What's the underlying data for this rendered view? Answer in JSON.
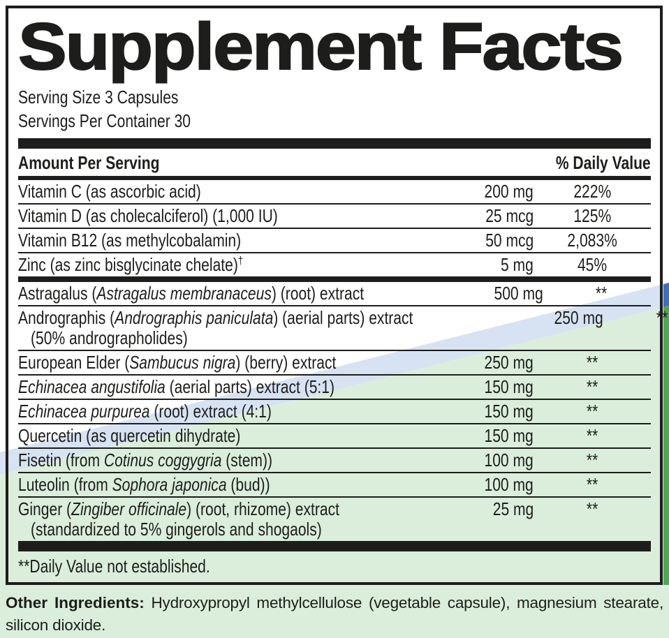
{
  "label": {
    "title": "Supplement Facts",
    "serving_size": "Serving Size 3 Capsules",
    "servings_per_container": "Servings Per Container 30",
    "columns": {
      "left": "Amount Per Serving",
      "right": "% Daily Value"
    },
    "rows": [
      {
        "name": [
          {
            "t": "Vitamin C (as ascorbic acid)"
          }
        ],
        "amount": "200 mg",
        "dv": "222%"
      },
      {
        "name": [
          {
            "t": "Vitamin D (as cholecalciferol) (1,000 IU)"
          }
        ],
        "amount": "25 mcg",
        "dv": "125%"
      },
      {
        "name": [
          {
            "t": "Vitamin B12 (as methylcobalamin)"
          }
        ],
        "amount": "50 mcg",
        "dv": "2,083%"
      },
      {
        "name": [
          {
            "t": "Zinc (as zinc bisglycinate chelate)"
          },
          {
            "t": "†",
            "sup": true
          }
        ],
        "amount": "5 mg",
        "dv": "45%",
        "group_end": true
      },
      {
        "name": [
          {
            "t": "Astragalus ("
          },
          {
            "t": "Astragalus membranaceus",
            "i": true
          },
          {
            "t": ") (root) extract"
          }
        ],
        "amount": "500 mg",
        "dv": "**"
      },
      {
        "name": [
          {
            "t": "Andrographis ("
          },
          {
            "t": "Andrographis paniculata",
            "i": true
          },
          {
            "t": ") (aerial parts) extract"
          }
        ],
        "name2": "(50% andrographolides)",
        "amount": "250 mg",
        "dv": "**"
      },
      {
        "name": [
          {
            "t": "European Elder ("
          },
          {
            "t": "Sambucus nigra",
            "i": true
          },
          {
            "t": ") (berry) extract"
          }
        ],
        "amount": "250 mg",
        "dv": "**"
      },
      {
        "name": [
          {
            "t": "Echinacea angustifolia",
            "i": true
          },
          {
            "t": " (aerial parts) extract (5:1)"
          }
        ],
        "amount": "150 mg",
        "dv": "**"
      },
      {
        "name": [
          {
            "t": "Echinacea purpurea",
            "i": true
          },
          {
            "t": " (root) extract (4:1)"
          }
        ],
        "amount": "150 mg",
        "dv": "**"
      },
      {
        "name": [
          {
            "t": "Quercetin (as quercetin dihydrate)"
          }
        ],
        "amount": "150 mg",
        "dv": "**"
      },
      {
        "name": [
          {
            "t": "Fisetin (from "
          },
          {
            "t": "Cotinus coggygria",
            "i": true
          },
          {
            "t": " (stem))"
          }
        ],
        "amount": "100 mg",
        "dv": "**"
      },
      {
        "name": [
          {
            "t": "Luteolin (from "
          },
          {
            "t": "Sophora japonica",
            "i": true
          },
          {
            "t": " (bud))"
          }
        ],
        "amount": "100 mg",
        "dv": "**"
      },
      {
        "name": [
          {
            "t": "Ginger ("
          },
          {
            "t": "Zingiber officinale",
            "i": true
          },
          {
            "t": ") (root, rhizome) extract"
          }
        ],
        "name2": "(standardized to 5% gingerols and shogaols)",
        "amount": "25 mg",
        "dv": "**"
      }
    ],
    "footnote": "**Daily Value not established.",
    "other_ingredients": {
      "label": "Other Ingredients:",
      "text": "Hydroxypropyl methylcellulose (vegetable capsule), magnesium stearate, silicon dioxide."
    },
    "colors": {
      "ink": "#1d1d1b",
      "stripe_blue": "#3b6fc4",
      "stripe_green": "#4caa4f",
      "paper": "#ffffff"
    }
  }
}
